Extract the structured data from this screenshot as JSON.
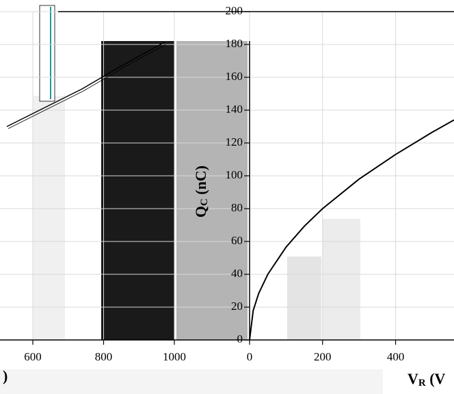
{
  "chart_data": {
    "type": "line",
    "y_label": "Q",
    "y_label_sub": "C",
    "y_label_unit": " (nC)",
    "x_label": "V",
    "x_label_sub": "R",
    "x_label_unit": " (V",
    "left_fragment": ")",
    "x": [
      0,
      10,
      25,
      50,
      100,
      150,
      200,
      300,
      400,
      500,
      560
    ],
    "series": [
      {
        "color": "#000000",
        "values": [
          0,
          17.9,
          28.3,
          40,
          56.6,
          69.3,
          80,
          98,
          113,
          126.5,
          134
        ]
      }
    ],
    "xlim": [
      0,
      560
    ],
    "xticks": [
      0,
      200,
      400
    ],
    "ylim": [
      0,
      200
    ],
    "yticks": [
      0,
      20,
      40,
      60,
      80,
      100,
      120,
      140,
      160,
      180,
      200
    ],
    "left_xticks": [
      600,
      800,
      1000
    ],
    "grid": true
  }
}
